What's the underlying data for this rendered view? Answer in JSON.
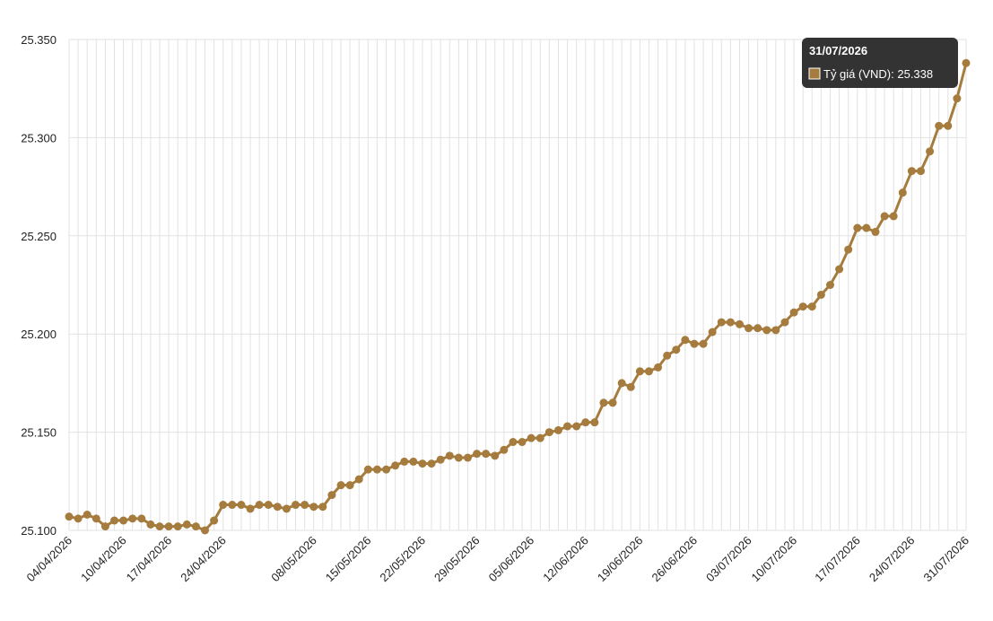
{
  "chart_data": {
    "type": "line",
    "categories": [
      "04/04/2026",
      null,
      null,
      null,
      null,
      null,
      "10/04/2026",
      null,
      null,
      null,
      null,
      "17/04/2026",
      null,
      null,
      null,
      null,
      null,
      "24/04/2026",
      null,
      null,
      null,
      null,
      null,
      null,
      null,
      null,
      null,
      "08/05/2026",
      null,
      null,
      null,
      null,
      null,
      "15/05/2026",
      null,
      null,
      null,
      null,
      null,
      "22/05/2026",
      null,
      null,
      null,
      null,
      null,
      "29/05/2026",
      null,
      null,
      null,
      null,
      null,
      "05/06/2026",
      null,
      null,
      null,
      null,
      null,
      "12/06/2026",
      null,
      null,
      null,
      null,
      null,
      "19/06/2026",
      null,
      null,
      null,
      null,
      null,
      "26/06/2026",
      null,
      null,
      null,
      null,
      null,
      "03/07/2026",
      null,
      null,
      null,
      null,
      "10/07/2026",
      null,
      null,
      null,
      null,
      null,
      null,
      "17/07/2026",
      null,
      null,
      null,
      null,
      null,
      "24/07/2026",
      null,
      null,
      null,
      null,
      null,
      "31/07/2026"
    ],
    "series": [
      {
        "name": "Tỷ giá (VND)",
        "color": "#a67c3e",
        "values": [
          25.107,
          25.106,
          25.108,
          25.106,
          25.102,
          25.105,
          25.105,
          25.106,
          25.106,
          25.103,
          25.102,
          25.102,
          25.102,
          25.103,
          25.102,
          25.1,
          25.105,
          25.113,
          25.113,
          25.113,
          25.111,
          25.113,
          25.113,
          25.112,
          25.111,
          25.113,
          25.113,
          25.112,
          25.112,
          25.118,
          25.123,
          25.123,
          25.126,
          25.131,
          25.131,
          25.131,
          25.133,
          25.135,
          25.135,
          25.134,
          25.134,
          25.136,
          25.138,
          25.137,
          25.137,
          25.139,
          25.139,
          25.138,
          25.141,
          25.145,
          25.145,
          25.147,
          25.147,
          25.15,
          25.151,
          25.153,
          25.153,
          25.155,
          25.155,
          25.165,
          25.165,
          25.175,
          25.173,
          25.181,
          25.181,
          25.183,
          25.189,
          25.192,
          25.197,
          25.195,
          25.195,
          25.201,
          25.206,
          25.206,
          25.205,
          25.203,
          25.203,
          25.202,
          25.202,
          25.206,
          25.211,
          25.214,
          25.214,
          25.22,
          25.225,
          25.233,
          25.243,
          25.254,
          25.254,
          25.252,
          25.26,
          25.26,
          25.272,
          25.283,
          25.283,
          25.293,
          25.306,
          25.306,
          25.32,
          25.338
        ]
      }
    ],
    "ylim": [
      25.1,
      25.35
    ],
    "yticks": [
      {
        "value": 25.1,
        "label": "25.100"
      },
      {
        "value": 25.15,
        "label": "25.150"
      },
      {
        "value": 25.2,
        "label": "25.200"
      },
      {
        "value": 25.25,
        "label": "25.250"
      },
      {
        "value": 25.3,
        "label": "25.300"
      },
      {
        "value": 25.35,
        "label": "25.350"
      }
    ],
    "grid": true
  }
}
